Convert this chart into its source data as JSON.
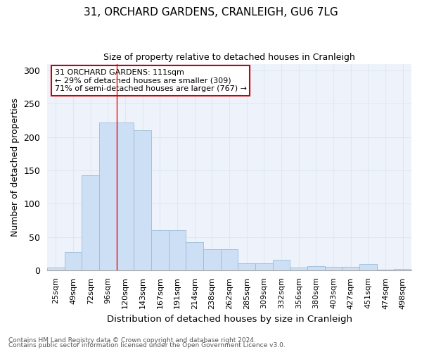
{
  "title": "31, ORCHARD GARDENS, CRANLEIGH, GU6 7LG",
  "subtitle": "Size of property relative to detached houses in Cranleigh",
  "xlabel": "Distribution of detached houses by size in Cranleigh",
  "ylabel": "Number of detached properties",
  "categories": [
    "25sqm",
    "49sqm",
    "72sqm",
    "96sqm",
    "120sqm",
    "143sqm",
    "167sqm",
    "191sqm",
    "214sqm",
    "238sqm",
    "262sqm",
    "285sqm",
    "309sqm",
    "332sqm",
    "356sqm",
    "380sqm",
    "403sqm",
    "427sqm",
    "451sqm",
    "474sqm",
    "498sqm"
  ],
  "values": [
    4,
    27,
    142,
    222,
    222,
    210,
    60,
    60,
    42,
    31,
    31,
    10,
    10,
    16,
    4,
    6,
    5,
    5,
    9,
    1,
    2
  ],
  "bar_color": "#ccdff5",
  "bar_edge_color": "#9bbcd8",
  "grid_color": "#dde8f5",
  "background_color": "#eef3fb",
  "red_line_x": 3.5,
  "annotation_text": "31 ORCHARD GARDENS: 111sqm\n← 29% of detached houses are smaller (309)\n71% of semi-detached houses are larger (767) →",
  "annotation_box_color": "white",
  "annotation_box_edge": "#cc0000",
  "footer1": "Contains HM Land Registry data © Crown copyright and database right 2024.",
  "footer2": "Contains public sector information licensed under the Open Government Licence v3.0.",
  "ylim": [
    0,
    310
  ],
  "yticks": [
    0,
    50,
    100,
    150,
    200,
    250,
    300
  ]
}
